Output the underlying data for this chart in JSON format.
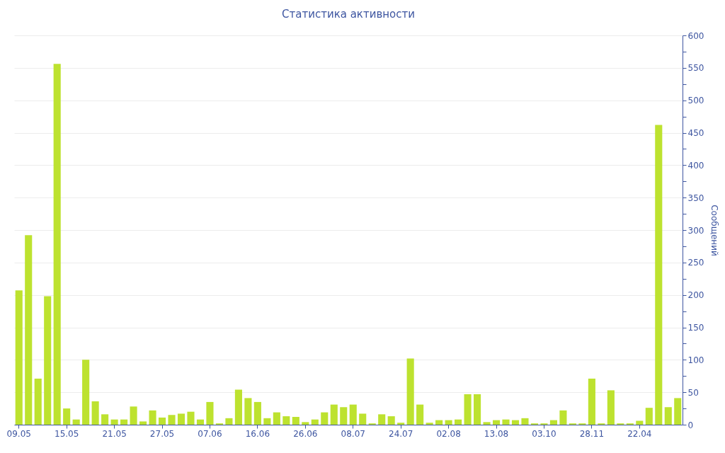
{
  "chart_data": {
    "type": "bar",
    "title": "Статистика активности",
    "ylabel": "Сообщений",
    "categories": [
      "09.05",
      null,
      null,
      null,
      null,
      "15.05",
      null,
      null,
      null,
      null,
      "21.05",
      null,
      null,
      null,
      null,
      "27.05",
      null,
      null,
      null,
      null,
      "07.06",
      null,
      null,
      null,
      null,
      "16.06",
      null,
      null,
      null,
      null,
      "26.06",
      null,
      null,
      null,
      null,
      "08.07",
      null,
      null,
      null,
      null,
      "24.07",
      null,
      null,
      null,
      null,
      "02.08",
      null,
      null,
      null,
      null,
      "13.08",
      null,
      null,
      null,
      null,
      "03.10",
      null,
      null,
      null,
      null,
      "28.11",
      null,
      null,
      null,
      null,
      "22.04",
      null,
      null,
      null,
      null
    ],
    "values": [
      207,
      292,
      71,
      198,
      556,
      25,
      8,
      100,
      36,
      16,
      8,
      8,
      28,
      5,
      22,
      11,
      15,
      17,
      20,
      8,
      35,
      2,
      10,
      54,
      41,
      35,
      10,
      19,
      13,
      12,
      4,
      8,
      19,
      31,
      27,
      31,
      17,
      2,
      16,
      13,
      3,
      102,
      31,
      3,
      7,
      7,
      8,
      47,
      47,
      4,
      7,
      8,
      7,
      10,
      2,
      2,
      7,
      22,
      2,
      2,
      71,
      2,
      53,
      2,
      2,
      6,
      26,
      462,
      27,
      41
    ],
    "color": "#bde22f",
    "ylim": [
      0,
      600
    ],
    "yticks": [
      0,
      {
        "value": 25,
        "label": null
      },
      50,
      {
        "value": 75,
        "label": null
      },
      100,
      {
        "value": 125,
        "label": null
      },
      150,
      {
        "value": 175,
        "label": null
      },
      200,
      {
        "value": 225,
        "label": null
      },
      250,
      {
        "value": 275,
        "label": null
      },
      300,
      {
        "value": 325,
        "label": null
      },
      350,
      {
        "value": 375,
        "label": null
      },
      400,
      {
        "value": 425,
        "label": null
      },
      450,
      {
        "value": 475,
        "label": null
      },
      500,
      {
        "value": 525,
        "label": null
      },
      550,
      {
        "value": 575,
        "label": null
      },
      600
    ],
    "grid": "y"
  }
}
